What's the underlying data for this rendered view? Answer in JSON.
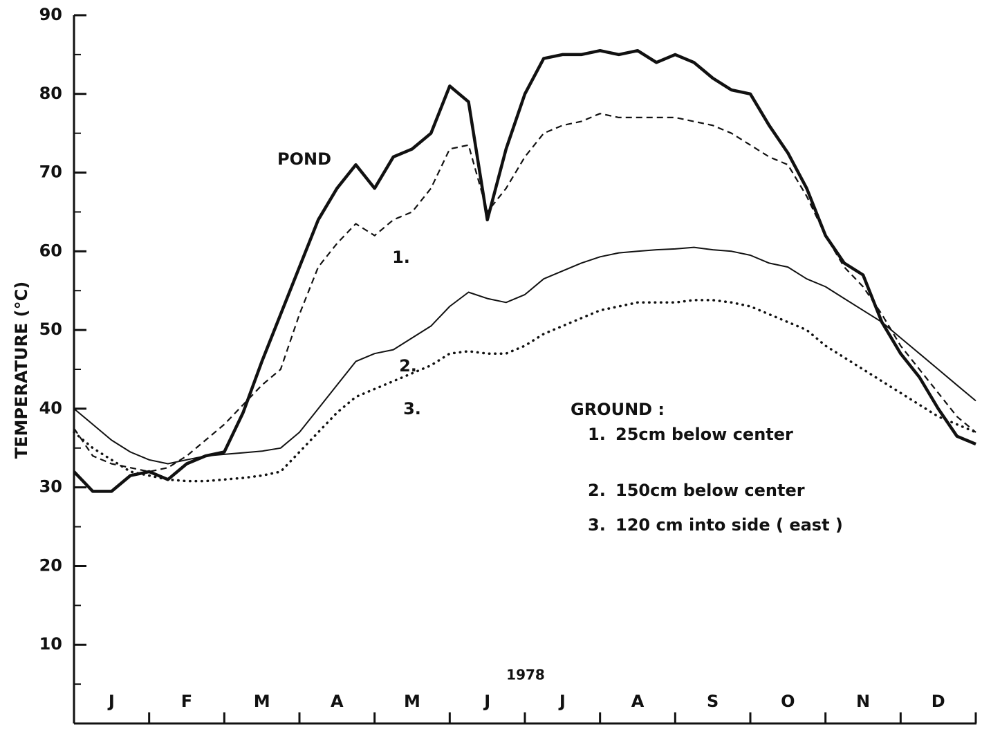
{
  "chart_data": {
    "type": "line",
    "y_label": "TEMPERATURE (°C)",
    "x_label": "1978",
    "categories": [
      "J",
      "F",
      "M",
      "A",
      "M",
      "J",
      "J",
      "A",
      "S",
      "O",
      "N",
      "D"
    ],
    "x": [
      0,
      0.25,
      0.5,
      0.75,
      1,
      1.25,
      1.5,
      1.75,
      2,
      2.25,
      2.5,
      2.75,
      3,
      3.25,
      3.5,
      3.75,
      4,
      4.25,
      4.5,
      4.75,
      5,
      5.25,
      5.5,
      5.75,
      6,
      6.25,
      6.5,
      6.75,
      7,
      7.25,
      7.5,
      7.75,
      8,
      8.25,
      8.5,
      8.75,
      9,
      9.25,
      9.5,
      9.75,
      10,
      10.25,
      10.5,
      10.75,
      11,
      11.25,
      11.5,
      11.75,
      12
    ],
    "xlim": [
      0,
      12
    ],
    "xticks": [
      0,
      1,
      2,
      3,
      4,
      5,
      6,
      7,
      8,
      9,
      10,
      11,
      12
    ],
    "ylim": [
      0,
      90
    ],
    "yticks": [
      10,
      20,
      30,
      40,
      50,
      60,
      70,
      80,
      90
    ],
    "yminor_ticks": [
      5,
      15,
      25,
      35,
      45,
      55,
      65,
      75,
      85
    ],
    "legend_title": "GROUND :",
    "series": [
      {
        "name": "POND",
        "color": "#111111",
        "style": "thick",
        "values": [
          32,
          29.5,
          29.5,
          31.5,
          32,
          31,
          33,
          34,
          34.5,
          39.5,
          46,
          52,
          58,
          64,
          68,
          71,
          68,
          72,
          73,
          75,
          81,
          79,
          64,
          73,
          80,
          84.5,
          85,
          85,
          85.5,
          85,
          85.5,
          84,
          85,
          84,
          82,
          80.5,
          80,
          76,
          72.5,
          68,
          62,
          58.5,
          57,
          51,
          47,
          44,
          40,
          36.5,
          35.5
        ]
      },
      {
        "name": "25cm below center",
        "label": "1.",
        "color": "#111111",
        "style": "dashed",
        "values": [
          37.5,
          34,
          33,
          32.5,
          32,
          32.5,
          34,
          36,
          38,
          40.5,
          43,
          45,
          52,
          58,
          61,
          63.5,
          62,
          64,
          65,
          68,
          73,
          73.5,
          65,
          68,
          72,
          75,
          76,
          76.5,
          77.5,
          77,
          77,
          77,
          77,
          76.5,
          76,
          75,
          73.5,
          72,
          71,
          67,
          62,
          58,
          55.5,
          52,
          48,
          45,
          42,
          39,
          37
        ]
      },
      {
        "name": "150cm below center",
        "label": "2.",
        "color": "#111111",
        "style": "solid",
        "values": [
          40,
          38,
          36,
          34.5,
          33.5,
          33,
          33.5,
          34,
          34.2,
          34.4,
          34.6,
          35,
          37,
          40,
          43,
          46,
          47,
          47.5,
          49,
          50.5,
          53,
          54.8,
          54,
          53.5,
          54.5,
          56.5,
          57.5,
          58.5,
          59.3,
          59.8,
          60,
          60.2,
          60.3,
          60.5,
          60.2,
          60,
          59.5,
          58.5,
          58,
          56.5,
          55.5,
          54,
          52.5,
          51,
          49,
          47,
          45,
          43,
          41
        ]
      },
      {
        "name": "120 cm into side ( east )",
        "label": "3.",
        "color": "#111111",
        "style": "dotted",
        "values": [
          37,
          35,
          33.5,
          32,
          31.5,
          31,
          30.8,
          30.8,
          31,
          31.2,
          31.5,
          32,
          34.5,
          37,
          39.5,
          41.5,
          42.5,
          43.5,
          44.5,
          45.5,
          47,
          47.3,
          47,
          47,
          48,
          49.5,
          50.5,
          51.5,
          52.5,
          53,
          53.5,
          53.5,
          53.5,
          53.8,
          53.8,
          53.5,
          53,
          52,
          51,
          50,
          48,
          46.5,
          45,
          43.5,
          42,
          40.5,
          39,
          38,
          37
        ]
      }
    ]
  }
}
